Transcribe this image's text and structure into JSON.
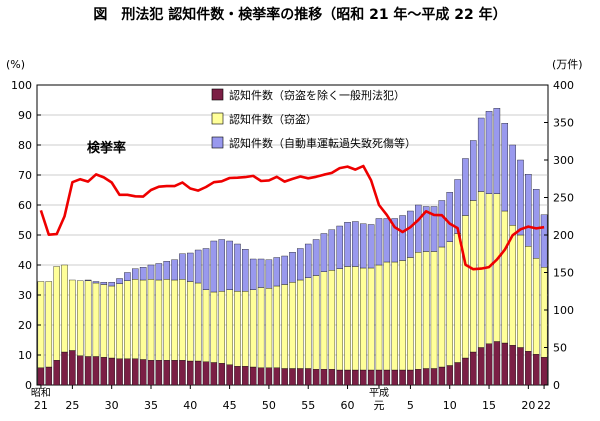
{
  "title": "図　刑法犯 認知件数・検挙率の推移（昭和 21 年〜平成 22 年）",
  "chart_data": {
    "type": "bar",
    "title": "図　刑法犯 認知件数・検挙率の推移（昭和 21 年〜平成 22 年）",
    "y_left_unit": "(%)",
    "y_right_unit": "(万件)",
    "y_left_range": [
      0,
      100
    ],
    "y_right_range": [
      0,
      400
    ],
    "y_left_ticks": [
      "0",
      "10",
      "20",
      "30",
      "40",
      "50",
      "60",
      "70",
      "80",
      "90",
      "100"
    ],
    "y_right_ticks": [
      "0",
      "50",
      "100",
      "150",
      "200",
      "250",
      "300",
      "350",
      "400"
    ],
    "x_era_labels": [
      "昭和",
      "平成"
    ],
    "x_tick_labels": [
      {
        "label": "21",
        "index": 0
      },
      {
        "label": "25",
        "index": 4
      },
      {
        "label": "30",
        "index": 9
      },
      {
        "label": "35",
        "index": 14
      },
      {
        "label": "40",
        "index": 19
      },
      {
        "label": "45",
        "index": 24
      },
      {
        "label": "50",
        "index": 29
      },
      {
        "label": "55",
        "index": 34
      },
      {
        "label": "60",
        "index": 39
      },
      {
        "label": "元",
        "index": 43
      },
      {
        "label": "5",
        "index": 47
      },
      {
        "label": "10",
        "index": 52
      },
      {
        "label": "15",
        "index": 57
      },
      {
        "label": "20",
        "index": 62
      },
      {
        "label": "22",
        "index": 64
      }
    ],
    "grid": true,
    "legend_position": "top-center",
    "x_years": [
      "21",
      "22",
      "23",
      "24",
      "25",
      "26",
      "27",
      "28",
      "29",
      "30",
      "31",
      "32",
      "33",
      "34",
      "35",
      "36",
      "37",
      "38",
      "39",
      "40",
      "41",
      "42",
      "43",
      "44",
      "45",
      "46",
      "47",
      "48",
      "49",
      "50",
      "51",
      "52",
      "53",
      "54",
      "55",
      "56",
      "57",
      "58",
      "59",
      "60",
      "61",
      "62",
      "63",
      "元",
      "2",
      "3",
      "4",
      "5",
      "6",
      "7",
      "8",
      "9",
      "10",
      "11",
      "12",
      "13",
      "14",
      "15",
      "16",
      "17",
      "18",
      "19",
      "20",
      "21",
      "22"
    ],
    "series": [
      {
        "name": "認知件数（窃盗を除く一般刑法犯）",
        "color": "#7b1f45",
        "axis": "right",
        "values": [
          23,
          24,
          33,
          44,
          46,
          39,
          38,
          38,
          37,
          36,
          35,
          35,
          35,
          34,
          33,
          33,
          33,
          33,
          33,
          32,
          32,
          31,
          30,
          29,
          27,
          25,
          25,
          24,
          23,
          23,
          23,
          22,
          22,
          22,
          22,
          21,
          21,
          21,
          20,
          20,
          20,
          20,
          20,
          20,
          20,
          20,
          20,
          20,
          21,
          22,
          22,
          24,
          26,
          30,
          36,
          44,
          50,
          55,
          58,
          56,
          53,
          50,
          45,
          41,
          37
        ]
      },
      {
        "name": "認知件数（窃盗）",
        "color": "#ffff99",
        "axis": "right",
        "values": [
          115,
          114,
          125,
          116,
          94,
          100,
          101,
          98,
          97,
          96,
          100,
          104,
          106,
          106,
          108,
          107,
          108,
          107,
          108,
          106,
          104,
          96,
          94,
          96,
          100,
          100,
          100,
          103,
          107,
          106,
          109,
          112,
          115,
          118,
          121,
          125,
          130,
          132,
          135,
          138,
          138,
          136,
          136,
          140,
          144,
          144,
          146,
          150,
          156,
          156,
          156,
          160,
          165,
          172,
          190,
          202,
          208,
          200,
          197,
          176,
          160,
          150,
          140,
          128,
          120
        ]
      },
      {
        "name": "認知件数（自動車運転過失致死傷等）",
        "color": "#9999ee",
        "axis": "right",
        "values": [
          0,
          0,
          0,
          0,
          0,
          0,
          1,
          2,
          3,
          5,
          7,
          11,
          14,
          17,
          19,
          22,
          24,
          27,
          34,
          38,
          44,
          55,
          68,
          69,
          65,
          63,
          56,
          41,
          38,
          38,
          38,
          38,
          40,
          42,
          45,
          48,
          51,
          54,
          57,
          59,
          60,
          59,
          58,
          62,
          58,
          58,
          60,
          62,
          63,
          60,
          60,
          62,
          66,
          72,
          76,
          80,
          98,
          110,
          114,
          117,
          107,
          100,
          96,
          92,
          70
        ]
      },
      {
        "name": "検挙率",
        "color": "#ee0000",
        "axis": "left",
        "values": [
          58.2,
          50.1,
          50.3,
          56.2,
          67.6,
          68.6,
          67.8,
          70.2,
          69.2,
          67.5,
          63.4,
          63.4,
          62.9,
          62.8,
          65.0,
          66.1,
          66.3,
          66.3,
          67.5,
          65.5,
          64.8,
          66.0,
          67.6,
          67.9,
          69.0,
          69.1,
          69.3,
          69.7,
          68.0,
          68.2,
          69.4,
          67.8,
          68.7,
          69.5,
          68.9,
          69.4,
          70.1,
          70.7,
          72.3,
          72.8,
          71.8,
          73.0,
          68.2,
          60.0,
          56.7,
          52.6,
          51.0,
          52.6,
          55.0,
          57.9,
          56.7,
          56.6,
          53.8,
          52.3,
          40.1,
          38.6,
          38.8,
          39.3,
          41.8,
          45.1,
          49.9,
          51.9,
          52.8,
          52.2,
          52.6
        ]
      }
    ]
  }
}
